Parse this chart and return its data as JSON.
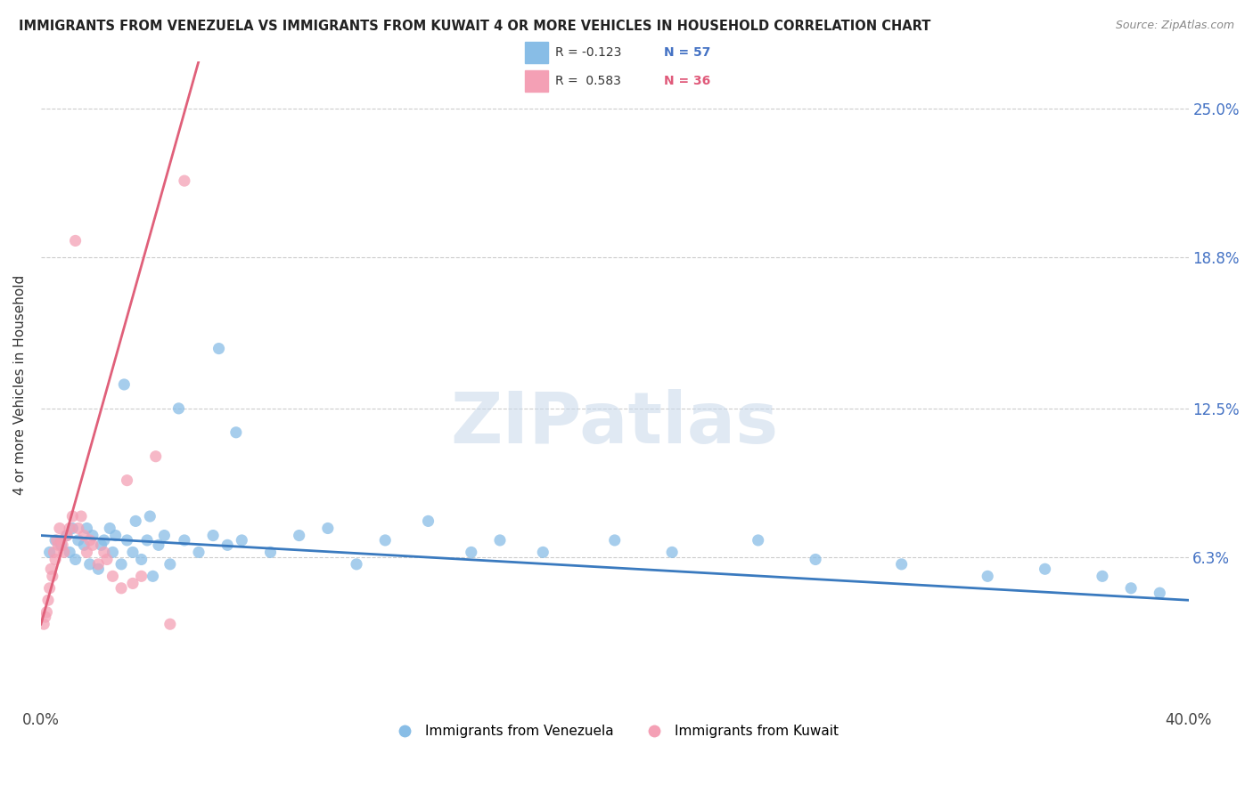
{
  "title": "IMMIGRANTS FROM VENEZUELA VS IMMIGRANTS FROM KUWAIT 4 OR MORE VEHICLES IN HOUSEHOLD CORRELATION CHART",
  "source": "Source: ZipAtlas.com",
  "ylabel": "4 or more Vehicles in Household",
  "xmin": 0.0,
  "xmax": 40.0,
  "ymin": 0.0,
  "ymax": 27.0,
  "yticks": [
    6.3,
    12.5,
    18.8,
    25.0
  ],
  "ytick_labels": [
    "6.3%",
    "12.5%",
    "18.8%",
    "25.0%"
  ],
  "xtick_labels": [
    "0.0%",
    "40.0%"
  ],
  "legend_blue_label": "Immigrants from Venezuela",
  "legend_pink_label": "Immigrants from Kuwait",
  "blue_color": "#88bde6",
  "pink_color": "#f4a0b5",
  "blue_line_color": "#3a7abf",
  "pink_line_color": "#e0607a",
  "background_color": "#ffffff",
  "grid_color": "#cccccc",
  "blue_r_text": "R = -0.123",
  "blue_n_text": "N = 57",
  "pink_r_text": "R =  0.583",
  "pink_n_text": "N = 36",
  "blue_n_color": "#4472c4",
  "pink_n_color": "#e05a7a",
  "blue_scatter_x": [
    0.3,
    0.5,
    0.7,
    0.9,
    1.0,
    1.1,
    1.2,
    1.3,
    1.5,
    1.6,
    1.7,
    1.8,
    2.0,
    2.1,
    2.2,
    2.4,
    2.5,
    2.6,
    2.8,
    3.0,
    3.2,
    3.3,
    3.5,
    3.7,
    3.9,
    4.1,
    4.3,
    4.5,
    5.0,
    5.5,
    6.0,
    6.5,
    7.0,
    8.0,
    9.0,
    10.0,
    11.0,
    12.0,
    13.5,
    15.0,
    16.0,
    17.5,
    20.0,
    22.0,
    25.0,
    27.0,
    30.0,
    33.0,
    35.0,
    37.0,
    38.0,
    39.0,
    2.9,
    3.8,
    6.2,
    6.8,
    4.8
  ],
  "blue_scatter_y": [
    6.5,
    7.0,
    6.8,
    7.2,
    6.5,
    7.5,
    6.2,
    7.0,
    6.8,
    7.5,
    6.0,
    7.2,
    5.8,
    6.8,
    7.0,
    7.5,
    6.5,
    7.2,
    6.0,
    7.0,
    6.5,
    7.8,
    6.2,
    7.0,
    5.5,
    6.8,
    7.2,
    6.0,
    7.0,
    6.5,
    7.2,
    6.8,
    7.0,
    6.5,
    7.2,
    7.5,
    6.0,
    7.0,
    7.8,
    6.5,
    7.0,
    6.5,
    7.0,
    6.5,
    7.0,
    6.2,
    6.0,
    5.5,
    5.8,
    5.5,
    5.0,
    4.8,
    13.5,
    8.0,
    15.0,
    11.5,
    12.5
  ],
  "pink_scatter_x": [
    0.1,
    0.2,
    0.3,
    0.4,
    0.5,
    0.6,
    0.7,
    0.8,
    0.9,
    1.0,
    1.1,
    1.2,
    1.3,
    1.4,
    1.5,
    1.6,
    1.7,
    1.8,
    2.0,
    2.2,
    2.5,
    2.8,
    3.0,
    3.5,
    4.0,
    0.15,
    0.25,
    0.35,
    0.45,
    0.55,
    0.65,
    0.75,
    3.2,
    4.5,
    5.0,
    2.3
  ],
  "pink_scatter_y": [
    3.5,
    4.0,
    5.0,
    5.5,
    6.2,
    6.8,
    7.0,
    6.5,
    7.2,
    7.5,
    8.0,
    19.5,
    7.5,
    8.0,
    7.2,
    6.5,
    7.0,
    6.8,
    6.0,
    6.5,
    5.5,
    5.0,
    9.5,
    5.5,
    10.5,
    3.8,
    4.5,
    5.8,
    6.5,
    7.0,
    7.5,
    6.8,
    5.2,
    3.5,
    22.0,
    6.2
  ],
  "blue_reg_x0": 0.0,
  "blue_reg_x1": 40.0,
  "blue_reg_y0": 7.2,
  "blue_reg_y1": 4.5,
  "pink_reg_x0": 0.0,
  "pink_reg_x1": 5.5,
  "pink_reg_y0": 3.5,
  "pink_reg_y1": 27.0
}
